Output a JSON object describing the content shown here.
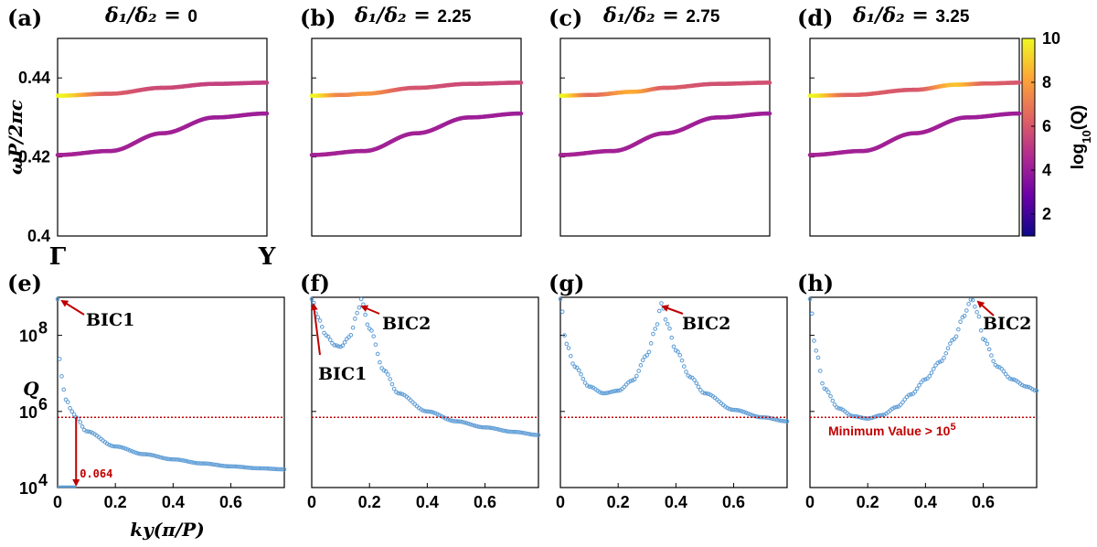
{
  "colors": {
    "q_scatter": "#5b9bd5",
    "threshold_line": "#c00000",
    "arrow": "#c00000",
    "colormap": [
      "#0d0887",
      "#6a00a8",
      "#b12a90",
      "#e16462",
      "#fca636",
      "#f0f921"
    ]
  },
  "colorbar": {
    "label": "log10(Q)",
    "label_base": "log",
    "label_sub": "10",
    "label_rest": "(Q)",
    "range": [
      1,
      10
    ],
    "ticks": [
      "2",
      "4",
      "6",
      "8",
      "10"
    ]
  },
  "chart_data": [
    {
      "type": "line",
      "panel": "(a)",
      "title": "δ1/δ2 = 0",
      "title_sym": "δ₁/δ₂ = ",
      "title_val": "0",
      "ylabel": "ωP/2πc",
      "xlim": [
        0,
        1
      ],
      "ylim": [
        0.4,
        0.45
      ],
      "xticklabels": [
        "Γ",
        "Y"
      ],
      "yticks": [
        "0.4",
        "0.42",
        "0.44"
      ],
      "colorscale": "log10(Q)",
      "series": [
        {
          "band": "upper",
          "x": [
            0,
            0.25,
            0.5,
            0.75,
            1.0
          ],
          "y": [
            0.4355,
            0.436,
            0.4375,
            0.4385,
            0.4388
          ],
          "log10Q": [
            10,
            6.2,
            5.6,
            5.3,
            5.2
          ]
        },
        {
          "band": "lower",
          "x": [
            0,
            0.25,
            0.5,
            0.75,
            1.0
          ],
          "y": [
            0.4205,
            0.4215,
            0.426,
            0.43,
            0.431
          ],
          "log10Q": [
            4.3,
            4.2,
            4.2,
            4.1,
            4.1
          ]
        }
      ]
    },
    {
      "type": "line",
      "panel": "(b)",
      "title": "δ1/δ2 = 2.25",
      "title_sym": "δ₁/δ₂ = ",
      "title_val": "2.25",
      "xlim": [
        0,
        1
      ],
      "ylim": [
        0.4,
        0.45
      ],
      "colorscale": "log10(Q)",
      "series": [
        {
          "band": "upper",
          "x": [
            0,
            0.15,
            0.25,
            0.5,
            0.75,
            1.0
          ],
          "y": [
            0.4355,
            0.4357,
            0.436,
            0.4375,
            0.4385,
            0.4388
          ],
          "log10Q": [
            10,
            7.2,
            7.8,
            5.9,
            5.6,
            5.5
          ]
        },
        {
          "band": "lower",
          "x": [
            0,
            0.25,
            0.5,
            0.75,
            1.0
          ],
          "y": [
            0.4205,
            0.4215,
            0.426,
            0.43,
            0.431
          ],
          "log10Q": [
            4.3,
            4.2,
            4.2,
            4.1,
            4.1
          ]
        }
      ]
    },
    {
      "type": "line",
      "panel": "(c)",
      "title": "δ1/δ2 = 2.75",
      "title_sym": "δ₁/δ₂ = ",
      "title_val": "2.75",
      "xlim": [
        0,
        1
      ],
      "ylim": [
        0.4,
        0.45
      ],
      "colorscale": "log10(Q)",
      "series": [
        {
          "band": "upper",
          "x": [
            0,
            0.15,
            0.35,
            0.5,
            0.75,
            1.0
          ],
          "y": [
            0.4355,
            0.4357,
            0.4365,
            0.4375,
            0.4385,
            0.4388
          ],
          "log10Q": [
            10,
            6.6,
            8.3,
            6.2,
            5.8,
            5.8
          ]
        },
        {
          "band": "lower",
          "x": [
            0,
            0.25,
            0.5,
            0.75,
            1.0
          ],
          "y": [
            0.4205,
            0.4215,
            0.426,
            0.43,
            0.431
          ],
          "log10Q": [
            4.3,
            4.2,
            4.2,
            4.1,
            4.1
          ]
        }
      ]
    },
    {
      "type": "line",
      "panel": "(d)",
      "title": "δ1/δ2 = 3.25",
      "title_sym": "δ₁/δ₂ = ",
      "title_val": "3.25",
      "xlim": [
        0,
        1
      ],
      "ylim": [
        0.4,
        0.45
      ],
      "colorscale": "log10(Q)",
      "series": [
        {
          "band": "upper",
          "x": [
            0,
            0.2,
            0.5,
            0.7,
            0.85,
            1.0
          ],
          "y": [
            0.4355,
            0.4357,
            0.437,
            0.4383,
            0.4386,
            0.4388
          ],
          "log10Q": [
            10,
            6.3,
            6.0,
            8.8,
            6.3,
            6.0
          ]
        },
        {
          "band": "lower",
          "x": [
            0,
            0.25,
            0.5,
            0.75,
            1.0
          ],
          "y": [
            0.4205,
            0.4215,
            0.426,
            0.43,
            0.431
          ],
          "log10Q": [
            4.3,
            4.2,
            4.2,
            4.1,
            4.1
          ]
        }
      ]
    },
    {
      "type": "scatter",
      "panel": "(e)",
      "ylabel": "Q",
      "xlabel": "ky(π/P)",
      "yscale": "log",
      "xlim": [
        0,
        0.785
      ],
      "ylim": [
        10000,
        1000000000
      ],
      "xticks": [
        "0",
        "0.2",
        "0.4",
        "0.6"
      ],
      "yticks": [
        "10^4",
        "10^6",
        "10^8"
      ],
      "threshold": 700000,
      "annotations": [
        "BIC1"
      ],
      "marker_label": "0.064",
      "series": [
        {
          "x": [
            0,
            0.01,
            0.03,
            0.05,
            0.064,
            0.1,
            0.2,
            0.3,
            0.4,
            0.5,
            0.6,
            0.7,
            0.785
          ],
          "y": [
            1000000000,
            10000000,
            2000000,
            1000000,
            700000,
            300000,
            120000,
            75000,
            55000,
            43000,
            36000,
            32000,
            30000
          ]
        }
      ]
    },
    {
      "type": "scatter",
      "panel": "(f)",
      "yscale": "log",
      "xlim": [
        0,
        0.785
      ],
      "ylim": [
        10000,
        1000000000
      ],
      "xticks": [
        "0",
        "0.2",
        "0.4",
        "0.6"
      ],
      "threshold": 700000,
      "annotations": [
        "BIC1",
        "BIC2"
      ],
      "series": [
        {
          "x": [
            0,
            0.02,
            0.05,
            0.08,
            0.1,
            0.13,
            0.16,
            0.17,
            0.2,
            0.25,
            0.3,
            0.4,
            0.5,
            0.6,
            0.7,
            0.785
          ],
          "y": [
            1000000000,
            300000000,
            100000000,
            55000000,
            50000000,
            90000000,
            400000000,
            900000000,
            150000000,
            12000000,
            3000000,
            1000000,
            550000,
            380000,
            290000,
            240000
          ]
        }
      ]
    },
    {
      "type": "scatter",
      "panel": "(g)",
      "yscale": "log",
      "xlim": [
        0,
        0.785
      ],
      "ylim": [
        10000,
        1000000000
      ],
      "xticks": [
        "0",
        "0.2",
        "0.4",
        "0.6"
      ],
      "threshold": 700000,
      "annotations": [
        "BIC2"
      ],
      "series": [
        {
          "x": [
            0,
            0.02,
            0.05,
            0.1,
            0.15,
            0.2,
            0.25,
            0.3,
            0.33,
            0.35,
            0.37,
            0.4,
            0.45,
            0.5,
            0.6,
            0.7,
            0.785
          ],
          "y": [
            900000000,
            60000000,
            15000000,
            4500000,
            3000000,
            3500000,
            6500000,
            30000000,
            150000000,
            700000000,
            200000000,
            40000000,
            8000000,
            3000000,
            1100000,
            700000,
            550000
          ]
        }
      ]
    },
    {
      "type": "scatter",
      "panel": "(h)",
      "yscale": "log",
      "xlim": [
        0,
        0.785
      ],
      "ylim": [
        10000,
        1000000000
      ],
      "xticks": [
        "0",
        "0.2",
        "0.4",
        "0.6"
      ],
      "threshold": 700000,
      "threshold_label": "Minimum Value > 10",
      "threshold_label_exp": "5",
      "annotations": [
        "BIC2"
      ],
      "series": [
        {
          "x": [
            0,
            0.02,
            0.05,
            0.1,
            0.15,
            0.2,
            0.25,
            0.3,
            0.35,
            0.4,
            0.45,
            0.5,
            0.53,
            0.56,
            0.58,
            0.6,
            0.65,
            0.7,
            0.75,
            0.785
          ],
          "y": [
            900000000,
            40000000,
            4000000,
            1200000,
            750000,
            650000,
            800000,
            1300000,
            2800000,
            7000000,
            20000000,
            80000000,
            300000000,
            900000000,
            400000000,
            80000000,
            15000000,
            7000000,
            4500000,
            3500000
          ]
        }
      ]
    }
  ]
}
